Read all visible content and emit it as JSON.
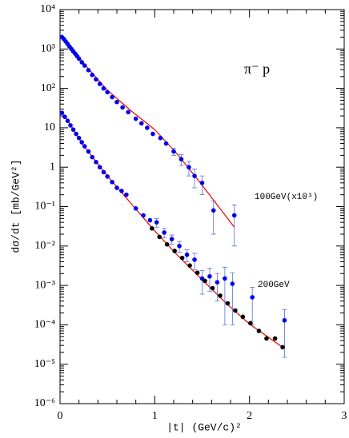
{
  "chart_data": {
    "type": "scatter",
    "xlabel": "|t| (GeV/c)²",
    "ylabel": "dσ/dt [mb/GeV²]",
    "annotations": [
      "π⁻ p",
      "100GeV(x10³)",
      "200GeV"
    ],
    "log_y": true,
    "xlim": [
      0,
      3
    ],
    "xticks": [
      0,
      1,
      2,
      3
    ],
    "ylim": [
      1e-06,
      10000
    ],
    "yticks": [
      {
        "value": 10000,
        "label": "10⁴"
      },
      {
        "value": 1000,
        "label": "10³"
      },
      {
        "value": 100,
        "label": "10²"
      },
      10,
      1,
      {
        "value": 0.1,
        "label": "10⁻¹"
      },
      {
        "value": 0.01,
        "label": "10⁻²"
      },
      {
        "value": 0.001,
        "label": "10⁻³"
      },
      {
        "value": 0.0001,
        "label": "10⁻⁴"
      },
      {
        "value": 1e-05,
        "label": "10⁻⁵"
      },
      {
        "value": 1e-06,
        "label": "10⁻⁶"
      }
    ],
    "series": [
      {
        "mode": "points",
        "color": "#0000ee",
        "x": [
          0.02,
          0.04,
          0.06,
          0.08,
          0.1,
          0.12,
          0.14,
          0.16,
          0.18,
          0.2,
          0.23,
          0.26,
          0.3,
          0.34,
          0.38,
          0.42,
          0.46,
          0.5,
          0.55,
          0.6,
          0.66,
          0.72,
          0.8,
          0.86,
          0.92,
          0.98,
          1.06,
          1.12,
          1.2,
          1.28,
          1.36,
          1.42,
          1.5,
          1.62,
          1.84
        ],
        "values": [
          2000,
          1800,
          1550,
          1350,
          1150,
          1000,
          870,
          760,
          660,
          570,
          460,
          380,
          290,
          220,
          170,
          130,
          100,
          80,
          60,
          45,
          33,
          25,
          17,
          13,
          10,
          7,
          5.5,
          4,
          2.5,
          1.6,
          1.0,
          0.6,
          0.4,
          0.08,
          0.06
        ],
        "errors": [
          null,
          null,
          null,
          null,
          null,
          null,
          null,
          null,
          null,
          null,
          null,
          null,
          null,
          null,
          null,
          null,
          null,
          null,
          null,
          null,
          null,
          null,
          null,
          null,
          null,
          null,
          null,
          null,
          0.5,
          0.5,
          0.4,
          0.3,
          0.2,
          0.06,
          0.05
        ]
      },
      {
        "mode": "points",
        "color": "#0000ee",
        "x": [
          0.02,
          0.05,
          0.08,
          0.11,
          0.14,
          0.17,
          0.2,
          0.23,
          0.26,
          0.3,
          0.34,
          0.38,
          0.42,
          0.46,
          0.5,
          0.55,
          0.6,
          0.65,
          0.7,
          0.8,
          0.88,
          0.95,
          1.02,
          1.1,
          1.18,
          1.26,
          1.34,
          1.42,
          1.5,
          1.58,
          1.66,
          1.74,
          1.82,
          2.03,
          2.37
        ],
        "values": [
          24,
          19,
          15,
          11.5,
          9,
          7,
          5.5,
          4.3,
          3.4,
          2.5,
          1.8,
          1.35,
          1.0,
          0.75,
          0.58,
          0.42,
          0.3,
          0.25,
          0.2,
          0.09,
          0.06,
          0.045,
          0.04,
          0.022,
          0.015,
          0.01,
          0.006,
          0.0045,
          0.0015,
          0.0017,
          0.0012,
          0.0015,
          0.0011,
          0.0005,
          0.00013
        ],
        "errors": [
          null,
          null,
          null,
          null,
          null,
          null,
          null,
          null,
          null,
          null,
          null,
          null,
          null,
          null,
          null,
          null,
          null,
          null,
          null,
          null,
          null,
          null,
          0.01,
          0.006,
          0.004,
          0.003,
          0.002,
          0.002,
          0.0009,
          0.001,
          0.0008,
          0.0014,
          0.001,
          0.0004,
          0.000115
        ]
      },
      {
        "mode": "points",
        "color": "#000000",
        "x": [
          0.97,
          1.05,
          1.13,
          1.21,
          1.29,
          1.37,
          1.45,
          1.53,
          1.61,
          1.69,
          1.77,
          1.85,
          1.93,
          2.01,
          2.1,
          2.18,
          2.27,
          2.35
        ],
        "values": [
          0.028,
          0.017,
          0.011,
          0.0075,
          0.005,
          0.0032,
          0.0021,
          0.0013,
          0.00085,
          0.00055,
          0.00035,
          0.00023,
          0.00016,
          0.00011,
          7e-05,
          4.5e-05,
          4.5e-05,
          2.7e-05
        ]
      },
      {
        "mode": "line",
        "color": "#ee0000",
        "x": [
          0.02,
          0.25,
          0.5,
          0.75,
          1.0,
          1.25,
          1.5,
          1.84
        ],
        "values": [
          2300,
          430,
          90,
          27,
          9,
          2.0,
          0.35,
          0.03
        ]
      },
      {
        "mode": "line",
        "color": "#ee0000",
        "x": [
          0.02,
          0.25,
          0.5,
          0.75,
          1.0,
          1.25,
          1.5,
          1.75,
          2.0,
          2.37
        ],
        "values": [
          26,
          3.5,
          0.6,
          0.12,
          0.024,
          0.0055,
          0.0014,
          0.00036,
          0.000105,
          2.5e-05
        ]
      }
    ]
  }
}
